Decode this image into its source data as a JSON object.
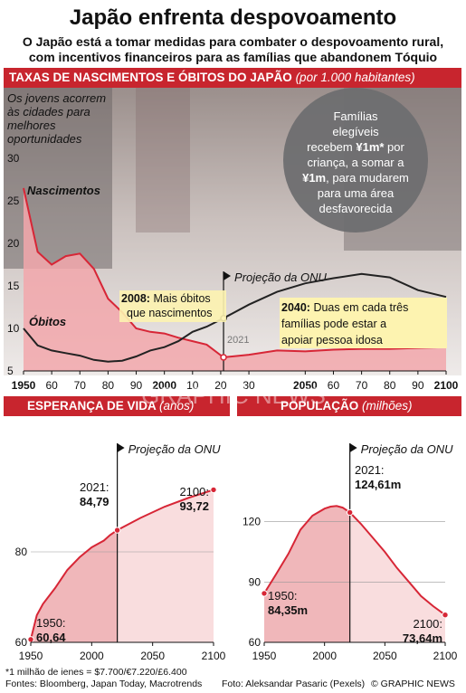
{
  "header": {
    "title": "Japão enfrenta despovoamento",
    "subtitle_line1": "O Japão está a tomar medidas para combater o despovoamento rural,",
    "subtitle_line2": "com incentivos financeiros para as famílias que abandonem Tóquio"
  },
  "colors": {
    "accent": "#c8252e",
    "births_line": "#d72636",
    "births_fill": "#f2a7ab",
    "deaths_line": "#222222",
    "label_box": "#fdf3b0",
    "circle": "#6e6e70"
  },
  "callouts": {
    "young_people": [
      "Os jovens acorrem",
      "às cidades para",
      "melhores",
      "oportunidades"
    ],
    "families": [
      "Famílias",
      "elegíveis",
      "recebem ¥1m* por",
      "criança, a somar a",
      "¥1m, para mudarem",
      "para uma área",
      "desfavorecida"
    ],
    "y2008_bold": "2008:",
    "y2008_rest1": " Mais óbitos",
    "y2008_rest2": "que nascimentos",
    "y2040_bold": "2040:",
    "y2040_rest1": " Duas em cada três",
    "y2040_rest2": "famílias pode estar a",
    "y2040_rest3": "apoiar pessoa idosa",
    "y2021": "2021"
  },
  "watermark": "GRAPHIC NEWS",
  "chart_data": [
    {
      "type": "line",
      "title": "TAXAS DE NASCIMENTOS E ÓBITOS DO JAPÃO",
      "title_unit": "(por 1.000 habitantes)",
      "xlim": [
        1950,
        2100
      ],
      "ylim": [
        5,
        30
      ],
      "x_ticks": [
        "1950",
        "60",
        "70",
        "80",
        "90",
        "2000",
        "10",
        "20",
        "30",
        "2050",
        "60",
        "70",
        "80",
        "90",
        "2100"
      ],
      "y_ticks": [
        "5",
        "10",
        "15",
        "20",
        "25",
        "30"
      ],
      "projection_year": 2021,
      "projection_label": "Projeção da ONU",
      "series": [
        {
          "name": "Nascimentos",
          "x": [
            1950,
            1955,
            1960,
            1965,
            1970,
            1975,
            1980,
            1985,
            1990,
            1995,
            2000,
            2005,
            2010,
            2015,
            2021,
            2030,
            2040,
            2050,
            2060,
            2070,
            2080,
            2090,
            2100
          ],
          "y": [
            26.5,
            19.0,
            17.5,
            18.5,
            18.8,
            17.0,
            13.5,
            11.9,
            10.0,
            9.6,
            9.4,
            8.9,
            8.5,
            8.1,
            6.6,
            6.9,
            7.4,
            7.3,
            7.5,
            7.6,
            7.6,
            7.7,
            7.8
          ]
        },
        {
          "name": "Óbitos",
          "x": [
            1950,
            1955,
            1960,
            1965,
            1970,
            1975,
            1980,
            1985,
            1990,
            1995,
            2000,
            2005,
            2010,
            2015,
            2021,
            2030,
            2040,
            2050,
            2060,
            2070,
            2080,
            2090,
            2100
          ],
          "y": [
            10.0,
            8.0,
            7.4,
            7.1,
            6.8,
            6.3,
            6.1,
            6.2,
            6.7,
            7.4,
            7.8,
            8.5,
            9.6,
            10.2,
            11.2,
            12.8,
            14.3,
            15.3,
            15.9,
            16.4,
            16.0,
            14.5,
            13.7
          ]
        }
      ]
    },
    {
      "type": "area",
      "title": "ESPERANÇA DE VIDA",
      "title_unit": "(anos)",
      "xlim": [
        1950,
        2100
      ],
      "ylim": [
        60,
        100
      ],
      "x_ticks": [
        "1950",
        "2000",
        "2050",
        "2100"
      ],
      "y_ticks": [
        "60",
        "80"
      ],
      "projection_year": 2021,
      "projection_label": "Projeção da ONU",
      "series": [
        {
          "name": "",
          "x": [
            1950,
            1955,
            1960,
            1970,
            1980,
            1990,
            2000,
            2010,
            2015,
            2021,
            2040,
            2060,
            2080,
            2100
          ],
          "y": [
            60.64,
            66.0,
            68.5,
            72.0,
            76.0,
            78.8,
            81.0,
            82.5,
            83.7,
            84.79,
            87.5,
            90.0,
            92.0,
            93.72
          ]
        }
      ],
      "labels": [
        {
          "year": "1950:",
          "value": "60,64"
        },
        {
          "year": "2021:",
          "value": "84,79"
        },
        {
          "year": "2100:",
          "value": "93,72"
        }
      ]
    },
    {
      "type": "area",
      "title": "POPULAÇÃO",
      "title_unit": "(milhões)",
      "xlim": [
        1950,
        2100
      ],
      "ylim": [
        60,
        150
      ],
      "x_ticks": [
        "1950",
        "2000",
        "2050",
        "2100"
      ],
      "y_ticks": [
        "60",
        "90",
        "120"
      ],
      "projection_year": 2021,
      "projection_label": "Projeção da ONU",
      "series": [
        {
          "name": "",
          "x": [
            1950,
            1960,
            1970,
            1980,
            1990,
            2000,
            2005,
            2010,
            2015,
            2021,
            2030,
            2040,
            2050,
            2060,
            2070,
            2080,
            2090,
            2100
          ],
          "y": [
            84.35,
            94.0,
            104.0,
            116.0,
            123.0,
            126.5,
            127.5,
            127.8,
            127.0,
            124.61,
            119.0,
            112.0,
            105.0,
            97.0,
            90.0,
            83.0,
            78.0,
            73.64
          ]
        }
      ],
      "labels": [
        {
          "year": "1950:",
          "value": "84,35m"
        },
        {
          "year": "2021:",
          "value": "124,61m"
        },
        {
          "year": "2100:",
          "value": "73,64m"
        }
      ]
    }
  ],
  "footer": {
    "note": "*1 milhão de ienes = $7.700/€7.220/£6.400",
    "sources": "Fontes: Bloomberg, Japan Today, Macrotrends",
    "photo": "Foto: Aleksandar Pasaric (Pexels)",
    "brand": "© GRAPHIC NEWS"
  }
}
